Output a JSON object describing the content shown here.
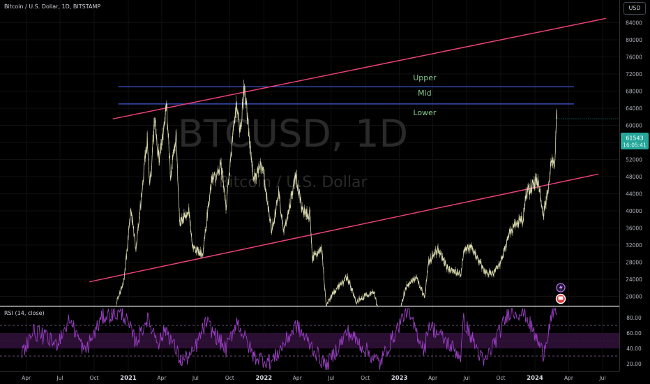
{
  "header": {
    "symbol_title": "Bitcoin / U.S. Dollar, 1D, BITSTAMP",
    "currency": "USD",
    "watermark_ticker": "BTCUSD, 1D",
    "watermark_name": "Bitcoin / U.S. Dollar"
  },
  "rsi": {
    "title": "RSI (14, close)",
    "ticks": [
      "80.00",
      "60.00",
      "40.00",
      "20.00"
    ]
  },
  "price_tag": {
    "value": "61543",
    "countdown": "16:05:41"
  },
  "colors": {
    "background": "#000000",
    "candle": "#e8e7b8",
    "channel": "#e8407a",
    "levels": "#3f5bd8",
    "zone_labels": "#86c98f",
    "rsi_line": "#9b3fc4",
    "rsi_band": "#2a0f33",
    "price_tag": "#26a69a"
  },
  "chart_data": {
    "type": "line",
    "x_axis_labels": [
      "Apr",
      "Jul",
      "Oct",
      "2021",
      "Apr",
      "Jul",
      "Oct",
      "2022",
      "Apr",
      "Jul",
      "Oct",
      "2023",
      "Apr",
      "Jul",
      "Oct",
      "2024",
      "Apr",
      "Jul"
    ],
    "y_axis_labels": [
      "84000",
      "80000",
      "76000",
      "72000",
      "68000",
      "64000",
      "60000",
      "56000",
      "52000",
      "48000",
      "44000",
      "40000",
      "36000",
      "32000",
      "28000",
      "24000",
      "20000"
    ],
    "ylim": [
      17500,
      88000
    ],
    "price_keypoints": [
      {
        "date": "2020-12-01",
        "price": 18800
      },
      {
        "date": "2020-12-20",
        "price": 23500
      },
      {
        "date": "2021-01-08",
        "price": 40000
      },
      {
        "date": "2021-01-22",
        "price": 31000
      },
      {
        "date": "2021-02-21",
        "price": 57000
      },
      {
        "date": "2021-02-28",
        "price": 45500
      },
      {
        "date": "2021-03-13",
        "price": 61000
      },
      {
        "date": "2021-03-25",
        "price": 51500
      },
      {
        "date": "2021-04-14",
        "price": 64500
      },
      {
        "date": "2021-04-25",
        "price": 48000
      },
      {
        "date": "2021-05-10",
        "price": 58000
      },
      {
        "date": "2021-05-19",
        "price": 37000
      },
      {
        "date": "2021-06-14",
        "price": 40000
      },
      {
        "date": "2021-06-22",
        "price": 31500
      },
      {
        "date": "2021-07-20",
        "price": 29800
      },
      {
        "date": "2021-08-14",
        "price": 48000
      },
      {
        "date": "2021-08-28",
        "price": 47500
      },
      {
        "date": "2021-09-06",
        "price": 52000
      },
      {
        "date": "2021-09-21",
        "price": 41000
      },
      {
        "date": "2021-10-20",
        "price": 66000
      },
      {
        "date": "2021-10-28",
        "price": 58000
      },
      {
        "date": "2021-11-10",
        "price": 69000
      },
      {
        "date": "2021-11-26",
        "price": 54000
      },
      {
        "date": "2021-12-04",
        "price": 47000
      },
      {
        "date": "2021-12-27",
        "price": 51000
      },
      {
        "date": "2022-01-22",
        "price": 35000
      },
      {
        "date": "2022-02-10",
        "price": 44000
      },
      {
        "date": "2022-02-24",
        "price": 35000
      },
      {
        "date": "2022-03-28",
        "price": 48000
      },
      {
        "date": "2022-04-15",
        "price": 40000
      },
      {
        "date": "2022-05-05",
        "price": 39000
      },
      {
        "date": "2022-05-12",
        "price": 28800
      },
      {
        "date": "2022-06-06",
        "price": 31000
      },
      {
        "date": "2022-06-18",
        "price": 17600
      },
      {
        "date": "2022-07-08",
        "price": 21000
      },
      {
        "date": "2022-08-14",
        "price": 24500
      },
      {
        "date": "2022-09-06",
        "price": 18800
      },
      {
        "date": "2022-10-05",
        "price": 20300
      },
      {
        "date": "2022-10-25",
        "price": 20800
      },
      {
        "date": "2022-11-09",
        "price": 15500
      },
      {
        "date": "2022-12-31",
        "price": 16500
      },
      {
        "date": "2023-01-20",
        "price": 22500
      },
      {
        "date": "2023-02-16",
        "price": 24500
      },
      {
        "date": "2023-03-10",
        "price": 19600
      },
      {
        "date": "2023-03-20",
        "price": 28000
      },
      {
        "date": "2023-04-14",
        "price": 31000
      },
      {
        "date": "2023-05-12",
        "price": 26500
      },
      {
        "date": "2023-06-15",
        "price": 25000
      },
      {
        "date": "2023-06-23",
        "price": 30500
      },
      {
        "date": "2023-07-14",
        "price": 31500
      },
      {
        "date": "2023-08-17",
        "price": 26000
      },
      {
        "date": "2023-09-11",
        "price": 25000
      },
      {
        "date": "2023-10-01",
        "price": 28000
      },
      {
        "date": "2023-10-24",
        "price": 34500
      },
      {
        "date": "2023-11-09",
        "price": 37000
      },
      {
        "date": "2023-11-30",
        "price": 38000
      },
      {
        "date": "2023-12-08",
        "price": 44000
      },
      {
        "date": "2024-01-11",
        "price": 47500
      },
      {
        "date": "2024-01-23",
        "price": 39000
      },
      {
        "date": "2024-02-08",
        "price": 45500
      },
      {
        "date": "2024-02-15",
        "price": 52000
      },
      {
        "date": "2024-02-23",
        "price": 51000
      },
      {
        "date": "2024-02-28",
        "price": 62000
      },
      {
        "date": "2024-02-29",
        "price": 61543
      }
    ],
    "channel_upper": [
      {
        "date": "2020-11-20",
        "price": 61500
      },
      {
        "date": "2024-07-10",
        "price": 85000
      }
    ],
    "channel_lower": [
      {
        "date": "2020-09-18",
        "price": 23400
      },
      {
        "date": "2024-06-20",
        "price": 48600
      }
    ],
    "level_upper": {
      "start": "2020-12-05",
      "end": "2024-04-15",
      "price": 69000
    },
    "level_mid": {
      "start": "2020-12-05",
      "end": "2024-04-15",
      "price": 65000
    },
    "zone_labels": [
      {
        "text": "Upper",
        "price": 71200,
        "date": "2023-03-10"
      },
      {
        "text": "Mid",
        "price": 67600,
        "date": "2023-03-10"
      },
      {
        "text": "Lower",
        "price": 63000,
        "date": "2023-03-10"
      }
    ],
    "last_price": 61543,
    "rsi_ylim": [
      10,
      95
    ],
    "rsi_band": [
      40,
      60
    ],
    "rsi_dashed": [
      70,
      30
    ],
    "rsi_keypoints": [
      {
        "date": "2020-03-20",
        "rsi": 35
      },
      {
        "date": "2020-04-20",
        "rsi": 62
      },
      {
        "date": "2020-05-20",
        "rsi": 55
      },
      {
        "date": "2020-06-20",
        "rsi": 45
      },
      {
        "date": "2020-07-28",
        "rsi": 78
      },
      {
        "date": "2020-09-05",
        "rsi": 35
      },
      {
        "date": "2020-10-25",
        "rsi": 82
      },
      {
        "date": "2020-12-17",
        "rsi": 86
      },
      {
        "date": "2021-01-22",
        "rsi": 48
      },
      {
        "date": "2021-02-20",
        "rsi": 78
      },
      {
        "date": "2021-03-25",
        "rsi": 48
      },
      {
        "date": "2021-04-13",
        "rsi": 66
      },
      {
        "date": "2021-05-22",
        "rsi": 24
      },
      {
        "date": "2021-06-22",
        "rsi": 32
      },
      {
        "date": "2021-07-30",
        "rsi": 74
      },
      {
        "date": "2021-09-21",
        "rsi": 38
      },
      {
        "date": "2021-10-20",
        "rsi": 76
      },
      {
        "date": "2021-12-04",
        "rsi": 30
      },
      {
        "date": "2022-01-22",
        "rsi": 22
      },
      {
        "date": "2022-03-29",
        "rsi": 70
      },
      {
        "date": "2022-06-18",
        "rsi": 16
      },
      {
        "date": "2022-08-14",
        "rsi": 62
      },
      {
        "date": "2022-11-09",
        "rsi": 20
      },
      {
        "date": "2023-01-20",
        "rsi": 90
      },
      {
        "date": "2023-03-10",
        "rsi": 38
      },
      {
        "date": "2023-03-20",
        "rsi": 72
      },
      {
        "date": "2023-06-15",
        "rsi": 30
      },
      {
        "date": "2023-06-23",
        "rsi": 76
      },
      {
        "date": "2023-08-17",
        "rsi": 20
      },
      {
        "date": "2023-10-24",
        "rsi": 88
      },
      {
        "date": "2023-12-05",
        "rsi": 86
      },
      {
        "date": "2024-01-23",
        "rsi": 33
      },
      {
        "date": "2024-02-15",
        "rsi": 82
      },
      {
        "date": "2024-02-29",
        "rsi": 86
      }
    ]
  }
}
